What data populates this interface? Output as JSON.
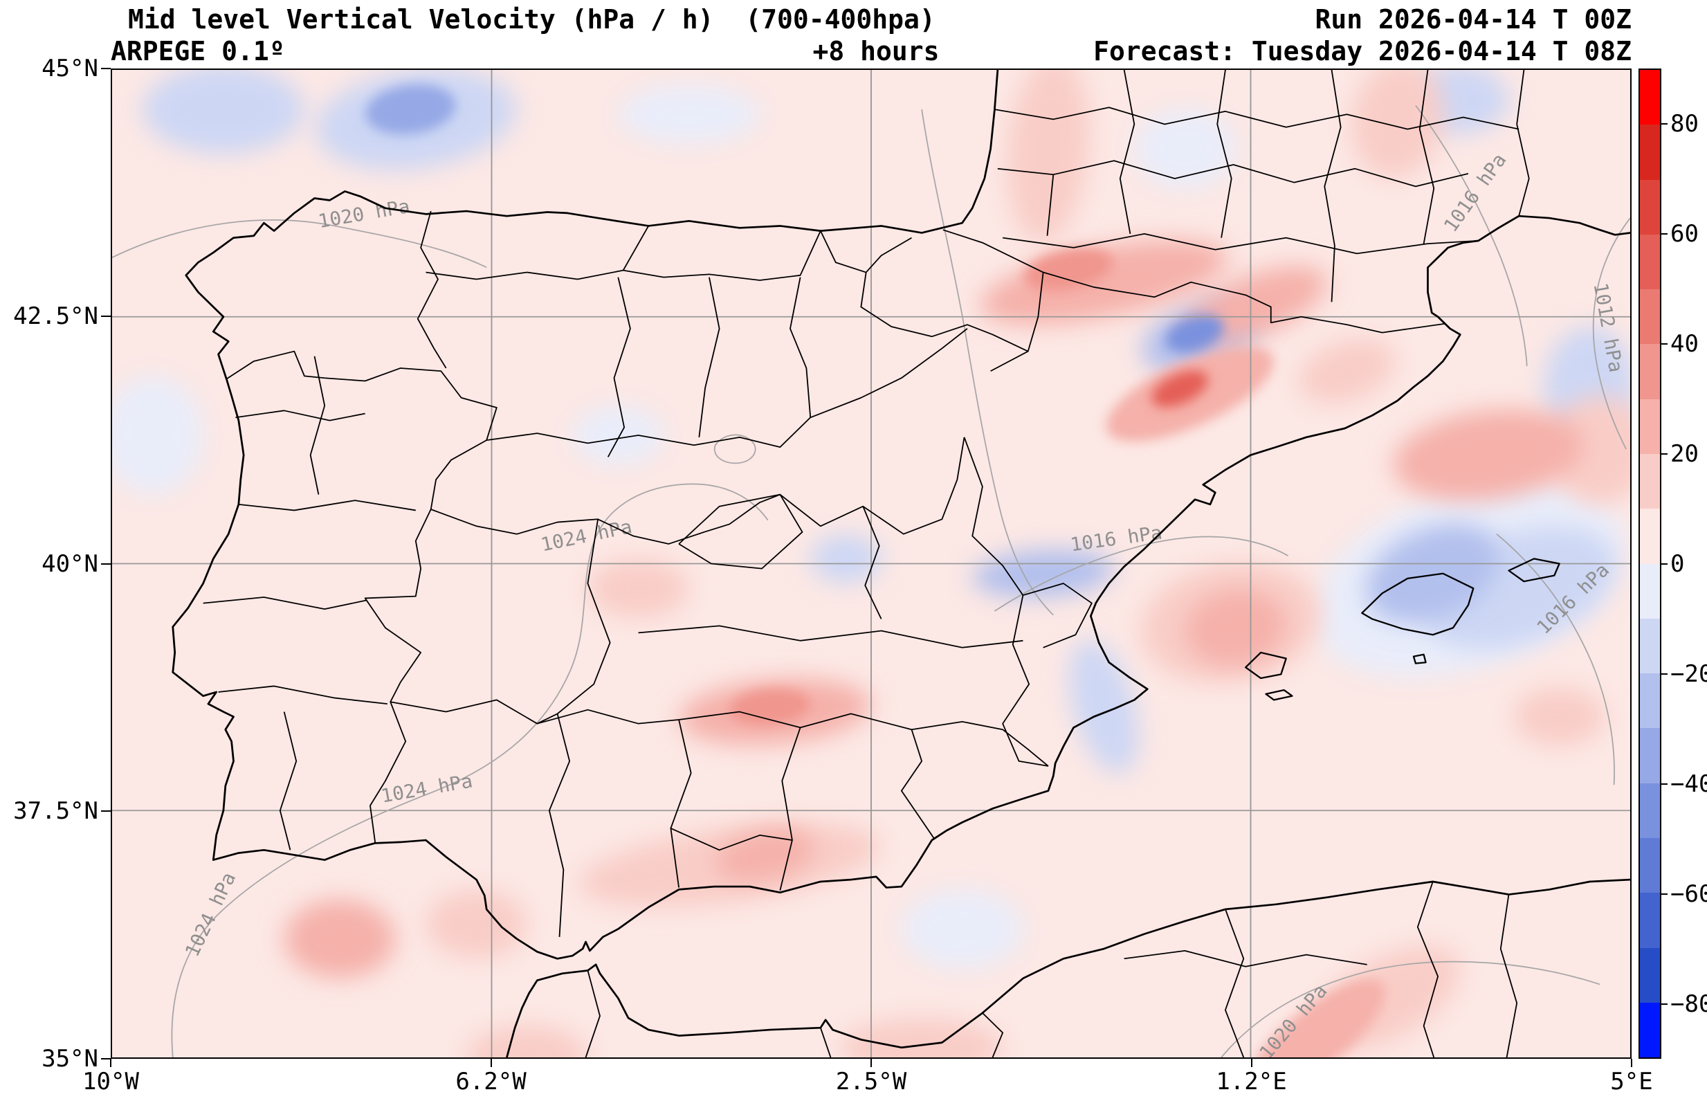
{
  "header": {
    "title": "Mid level Vertical Velocity (hPa / h)  (700-400hpa)",
    "model": "ARPEGE 0.1º",
    "lead": "+8 hours",
    "run": "Run 2026-04-14 T 00Z",
    "forecast": "Forecast: Tuesday 2026-04-14 T 08Z"
  },
  "chart_data": {
    "type": "heatmap",
    "title": "Mid level Vertical Velocity (hPa / h) (700-400hpa)",
    "model": "ARPEGE 0.1º",
    "run": "2026-04-14 T 00Z",
    "forecast_valid": "Tuesday 2026-04-14 T 08Z",
    "lead_hours": 8,
    "units": "hPa / h",
    "layer": "700-400 hPa",
    "region": "Iberian Peninsula and western Mediterranean",
    "lon_range": [
      -10,
      5
    ],
    "lat_range": [
      35,
      45
    ],
    "x_ticks": [
      {
        "label": "10°W",
        "lon": -10
      },
      {
        "label": "6.2°W",
        "lon": -6.25
      },
      {
        "label": "2.5°W",
        "lon": -2.5
      },
      {
        "label": "1.2°E",
        "lon": 1.25
      },
      {
        "label": "5°E",
        "lon": 5
      }
    ],
    "y_ticks": [
      {
        "label": "45°N",
        "lat": 45
      },
      {
        "label": "42.5°N",
        "lat": 42.5
      },
      {
        "label": "40°N",
        "lat": 40
      },
      {
        "label": "37.5°N",
        "lat": 37.5
      },
      {
        "label": "35°N",
        "lat": 35
      }
    ],
    "grid_lons": [
      -6.25,
      -2.5,
      1.25
    ],
    "grid_lats": [
      42.5,
      40,
      37.5
    ],
    "colorbar": {
      "ticks": [
        80,
        60,
        40,
        20,
        0,
        -20,
        -40,
        -60,
        -80
      ],
      "vmin": -90,
      "vmax": 90,
      "step": 10,
      "segment_colors_top_to_bottom": [
        "#ff0000",
        "#d8271e",
        "#de443b",
        "#e45f57",
        "#ea7a72",
        "#f0968e",
        "#f5b1aa",
        "#f9cdc7",
        "#fce8e5",
        "#e9edfa",
        "#cdd7f4",
        "#b2c0ed",
        "#96a9e6",
        "#7a92de",
        "#5f7bd6",
        "#4364ce",
        "#274dc6",
        "#0018ff"
      ]
    },
    "isobar_labels": [
      {
        "text": "1020 hPa",
        "lon": -7.5,
        "lat": 43.48,
        "rot": -10
      },
      {
        "text": "1016 hPa",
        "lon": 3.52,
        "lat": 43.72,
        "rot": -55
      },
      {
        "text": "1012 hPa",
        "lon": 4.72,
        "lat": 42.38,
        "rot": 80
      },
      {
        "text": "1024 hPa",
        "lon": -5.3,
        "lat": 40.22,
        "rot": -12
      },
      {
        "text": "1016 hPa",
        "lon": -0.07,
        "lat": 40.19,
        "rot": -8
      },
      {
        "text": "1016 hPa",
        "lon": 4.48,
        "lat": 39.6,
        "rot": -45
      },
      {
        "text": "1024 hPa",
        "lon": -6.88,
        "lat": 37.66,
        "rot": -10
      },
      {
        "text": "1024 hPa",
        "lon": -8.97,
        "lat": 36.42,
        "rot": -65
      },
      {
        "text": "1020 hPa",
        "lon": 1.72,
        "lat": 35.32,
        "rot": -50
      }
    ],
    "features": [
      {
        "lon": -7.05,
        "lat": 44.6,
        "value": -38,
        "rx": 0.45,
        "ry": 0.25,
        "rot": -8
      },
      {
        "lon": -7.0,
        "lat": 44.5,
        "value": -18,
        "rx": 1.0,
        "ry": 0.5,
        "rot": -8
      },
      {
        "lon": -8.9,
        "lat": 44.6,
        "value": -10,
        "rx": 0.8,
        "ry": 0.45,
        "rot": 0
      },
      {
        "lon": -4.3,
        "lat": 44.55,
        "value": -8,
        "rx": 0.7,
        "ry": 0.3,
        "rot": 0
      },
      {
        "lon": 0.6,
        "lat": 44.2,
        "value": -8,
        "rx": 0.5,
        "ry": 0.4,
        "rot": 0
      },
      {
        "lon": -0.75,
        "lat": 44.2,
        "value": 16,
        "rx": 0.4,
        "ry": 0.95,
        "rot": 5
      },
      {
        "lon": -0.2,
        "lat": 42.85,
        "value": 28,
        "rx": 1.25,
        "ry": 0.35,
        "rot": -12
      },
      {
        "lon": -0.55,
        "lat": 42.98,
        "value": 38,
        "rx": 0.45,
        "ry": 0.2,
        "rot": -12
      },
      {
        "lon": 1.3,
        "lat": 42.62,
        "value": 26,
        "rx": 0.75,
        "ry": 0.3,
        "rot": -22
      },
      {
        "lon": 0.7,
        "lat": 42.33,
        "value": -45,
        "rx": 0.3,
        "ry": 0.17,
        "rot": -20
      },
      {
        "lon": 0.75,
        "lat": 42.3,
        "value": -20,
        "rx": 0.6,
        "ry": 0.33,
        "rot": -20
      },
      {
        "lon": 0.55,
        "lat": 41.77,
        "value": 55,
        "rx": 0.3,
        "ry": 0.15,
        "rot": -25
      },
      {
        "lon": 0.65,
        "lat": 41.72,
        "value": 30,
        "rx": 0.9,
        "ry": 0.33,
        "rot": -25
      },
      {
        "lon": 2.2,
        "lat": 41.95,
        "value": 14,
        "rx": 0.5,
        "ry": 0.3,
        "rot": -20
      },
      {
        "lon": 3.6,
        "lat": 41.1,
        "value": 24,
        "rx": 0.95,
        "ry": 0.45,
        "rot": -8
      },
      {
        "lon": 4.7,
        "lat": 41.15,
        "value": 18,
        "rx": 0.5,
        "ry": 0.55,
        "rot": 0
      },
      {
        "lon": 4.6,
        "lat": 41.8,
        "value": -12,
        "rx": 0.45,
        "ry": 0.6,
        "rot": 0
      },
      {
        "lon": 3.3,
        "lat": 44.7,
        "value": -13,
        "rx": 0.5,
        "ry": 0.35,
        "rot": 0
      },
      {
        "lon": 2.7,
        "lat": 44.5,
        "value": 14,
        "rx": 0.45,
        "ry": 0.6,
        "rot": 10
      },
      {
        "lon": 3.05,
        "lat": 39.9,
        "value": -20,
        "rx": 0.7,
        "ry": 0.45,
        "rot": -25
      },
      {
        "lon": 3.9,
        "lat": 39.75,
        "value": -14,
        "rx": 1.0,
        "ry": 0.55,
        "rot": -20
      },
      {
        "lon": 3.4,
        "lat": 39.85,
        "value": -8,
        "rx": 1.6,
        "ry": 0.9,
        "rot": -20
      },
      {
        "lon": 1.1,
        "lat": 39.35,
        "value": 28,
        "rx": 0.5,
        "ry": 0.38,
        "rot": -10
      },
      {
        "lon": 1.05,
        "lat": 39.4,
        "value": 14,
        "rx": 0.9,
        "ry": 0.6,
        "rot": -10
      },
      {
        "lon": -0.2,
        "lat": 38.55,
        "value": -16,
        "rx": 0.3,
        "ry": 0.7,
        "rot": -15
      },
      {
        "lon": -0.8,
        "lat": 39.9,
        "value": -20,
        "rx": 0.7,
        "ry": 0.24,
        "rot": -4
      },
      {
        "lon": -3.45,
        "lat": 38.5,
        "value": 26,
        "rx": 0.95,
        "ry": 0.33,
        "rot": -5
      },
      {
        "lon": -3.5,
        "lat": 38.55,
        "value": 34,
        "rx": 0.4,
        "ry": 0.18,
        "rot": -5
      },
      {
        "lon": -4.8,
        "lat": 39.75,
        "value": 14,
        "rx": 0.5,
        "ry": 0.3,
        "rot": 0
      },
      {
        "lon": -3.9,
        "lat": 36.95,
        "value": 20,
        "rx": 1.5,
        "ry": 0.38,
        "rot": -8
      },
      {
        "lon": -3.55,
        "lat": 37.05,
        "value": 28,
        "rx": 0.5,
        "ry": 0.25,
        "rot": -12
      },
      {
        "lon": -6.4,
        "lat": 36.35,
        "value": 14,
        "rx": 0.5,
        "ry": 0.35,
        "rot": 0
      },
      {
        "lon": -7.75,
        "lat": 36.2,
        "value": 22,
        "rx": 0.55,
        "ry": 0.4,
        "rot": 0
      },
      {
        "lon": -5.9,
        "lat": 35.0,
        "value": 16,
        "rx": 0.6,
        "ry": 0.33,
        "rot": 0
      },
      {
        "lon": 1.9,
        "lat": 35.2,
        "value": 30,
        "rx": 0.85,
        "ry": 0.3,
        "rot": -40
      },
      {
        "lon": 2.6,
        "lat": 35.6,
        "value": 14,
        "rx": 0.8,
        "ry": 0.4,
        "rot": -30
      },
      {
        "lon": 4.3,
        "lat": 38.45,
        "value": 14,
        "rx": 0.45,
        "ry": 0.3,
        "rot": 0
      },
      {
        "lon": -9.6,
        "lat": 41.3,
        "value": -8,
        "rx": 0.5,
        "ry": 0.6,
        "rot": 0
      },
      {
        "lon": -2.75,
        "lat": 40.05,
        "value": -10,
        "rx": 0.35,
        "ry": 0.25,
        "rot": 0
      },
      {
        "lon": -5.0,
        "lat": 41.3,
        "value": -7,
        "rx": 0.45,
        "ry": 0.3,
        "rot": 0
      },
      {
        "lon": -1.6,
        "lat": 36.3,
        "value": -8,
        "rx": 0.6,
        "ry": 0.4,
        "rot": 0
      },
      {
        "lon": -2.0,
        "lat": 35.1,
        "value": 14,
        "rx": 0.8,
        "ry": 0.3,
        "rot": 0
      }
    ]
  }
}
